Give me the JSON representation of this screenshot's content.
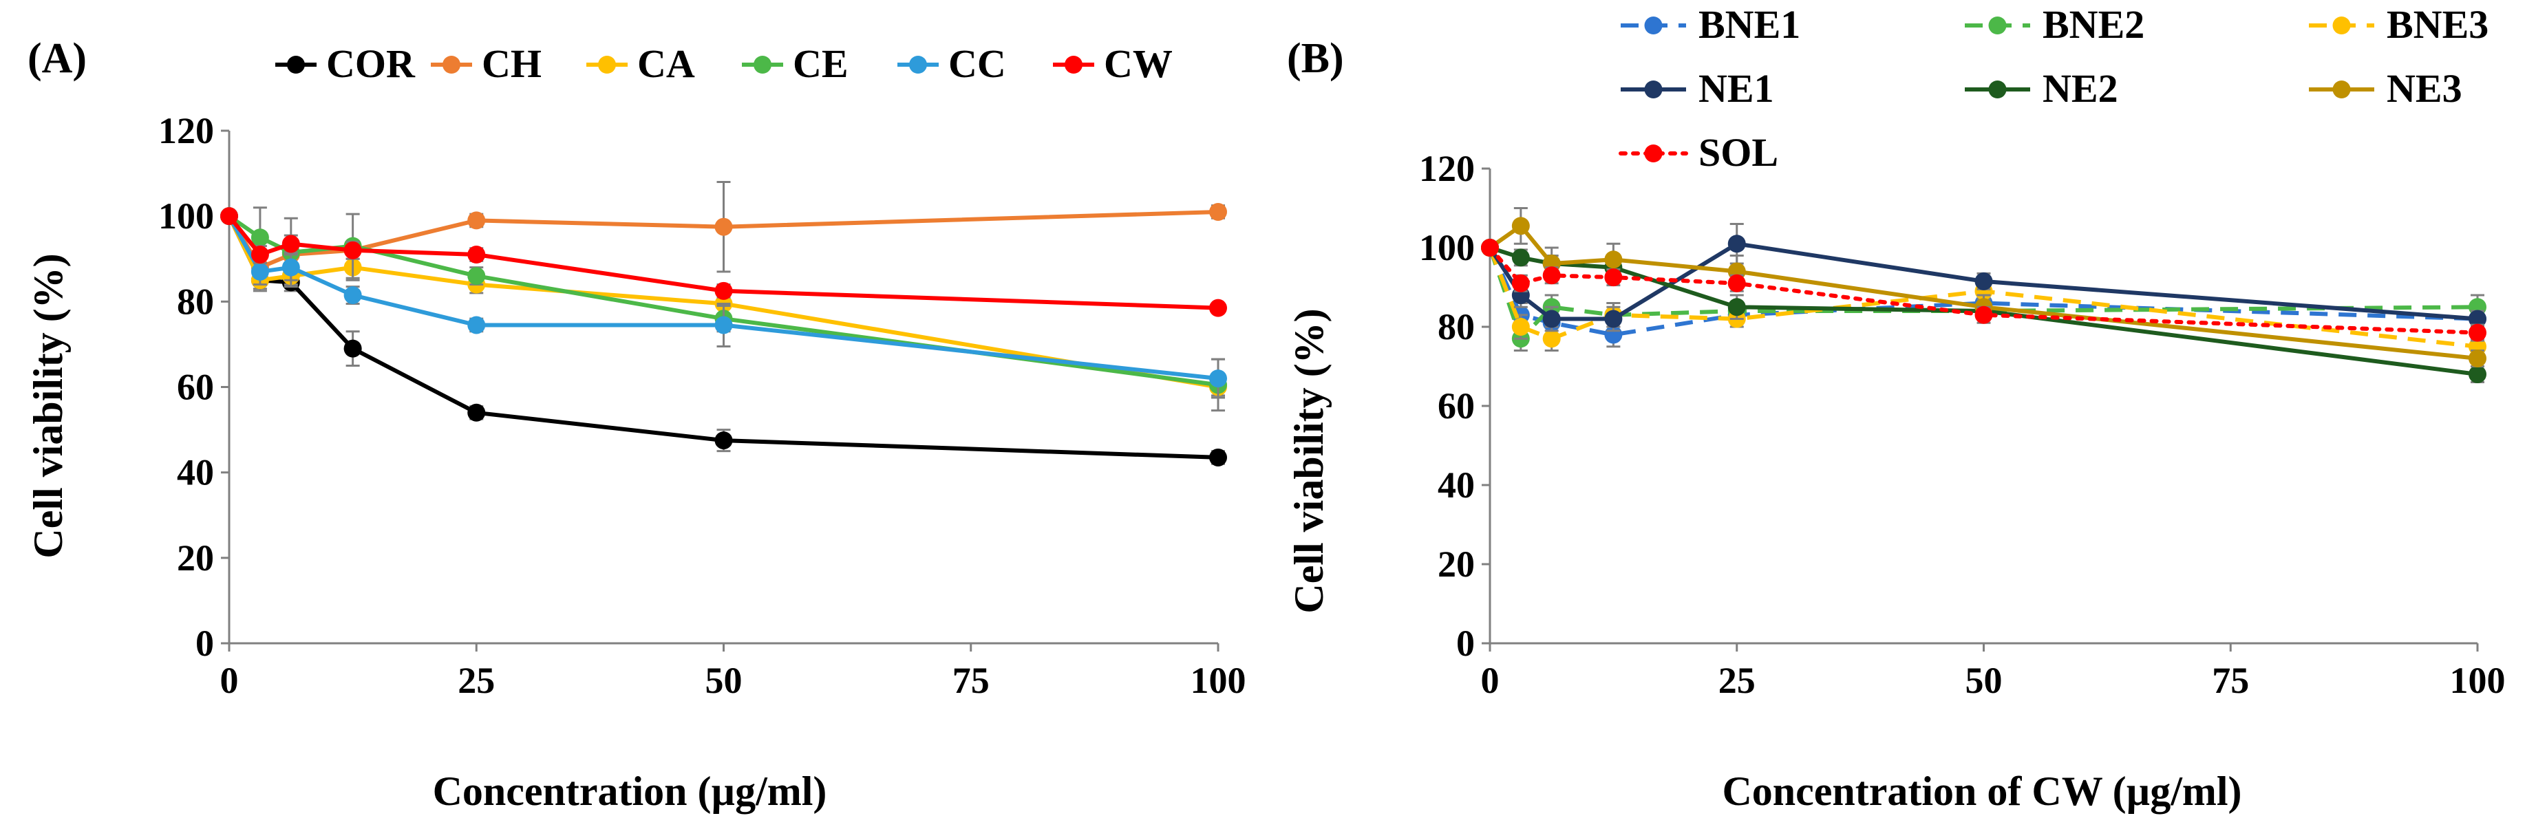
{
  "chart_data": [
    {
      "panel_label": "(A)",
      "type": "line",
      "xlabel": "Concentration (µg/ml)",
      "ylabel": "Cell viability (%)",
      "xlim": [
        0,
        100
      ],
      "ylim": [
        0,
        120
      ],
      "x_ticks": [
        0,
        25,
        50,
        75,
        100
      ],
      "y_ticks": [
        0,
        20,
        40,
        60,
        80,
        100,
        120
      ],
      "legend_position": "top",
      "series": [
        {
          "name": "COR",
          "color": "#000000",
          "dash": "solid",
          "x": [
            0,
            3.125,
            6.25,
            12.5,
            25,
            50,
            100
          ],
          "y": [
            100,
            85,
            84.5,
            69,
            54,
            47.5,
            43.5
          ],
          "err": [
            0,
            2.5,
            2,
            4,
            1.5,
            2.5,
            1.5
          ]
        },
        {
          "name": "CH",
          "color": "#ED7D31",
          "dash": "solid",
          "x": [
            0,
            3.125,
            6.25,
            12.5,
            25,
            50,
            100
          ],
          "y": [
            100,
            88,
            91,
            92,
            99,
            97.5,
            101
          ],
          "err": [
            0,
            2,
            3,
            2,
            1.5,
            10.5,
            1.5
          ]
        },
        {
          "name": "CA",
          "color": "#FFC000",
          "dash": "solid",
          "x": [
            0,
            3.125,
            6.25,
            12.5,
            25,
            50,
            100
          ],
          "y": [
            100,
            85,
            86,
            88,
            84,
            79.5,
            60
          ],
          "err": [
            0,
            2,
            2,
            3,
            2,
            2.5,
            2
          ]
        },
        {
          "name": "CE",
          "color": "#4CB848",
          "dash": "solid",
          "x": [
            0,
            3.125,
            6.25,
            12.5,
            25,
            50,
            100
          ],
          "y": [
            100,
            95,
            91.5,
            93,
            86,
            76,
            60.5
          ],
          "err": [
            0,
            7,
            8,
            7.5,
            2,
            3,
            6
          ]
        },
        {
          "name": "CC",
          "color": "#2E9BDA",
          "dash": "solid",
          "x": [
            0,
            3.125,
            6.25,
            12.5,
            25,
            50,
            100
          ],
          "y": [
            100,
            87,
            88,
            81.5,
            74.5,
            74.5,
            62
          ],
          "err": [
            0,
            3,
            3,
            2,
            1.5,
            5,
            4.5
          ]
        },
        {
          "name": "CW",
          "color": "#FF0000",
          "dash": "solid",
          "x": [
            0,
            3.125,
            6.25,
            12.5,
            25,
            50,
            100
          ],
          "y": [
            100,
            91,
            93.5,
            92,
            91,
            82.5,
            78.5
          ],
          "err": [
            0,
            2,
            2,
            2,
            1.5,
            1.5,
            1
          ]
        }
      ]
    },
    {
      "panel_label": "(B)",
      "type": "line",
      "xlabel": "Concentration of CW (µg/ml)",
      "ylabel": "Cell viability (%)",
      "xlim": [
        0,
        100
      ],
      "ylim": [
        0,
        120
      ],
      "x_ticks": [
        0,
        25,
        50,
        75,
        100
      ],
      "y_ticks": [
        0,
        20,
        40,
        60,
        80,
        100,
        120
      ],
      "legend_position": "top",
      "series": [
        {
          "name": "BNE1",
          "color": "#2E75D1",
          "dash": "dashed",
          "x": [
            0,
            3.125,
            6.25,
            12.5,
            25,
            50,
            100
          ],
          "y": [
            100,
            83,
            81,
            78,
            83,
            86,
            82
          ],
          "err": [
            0,
            3,
            3,
            3,
            2,
            2,
            2
          ]
        },
        {
          "name": "BNE2",
          "color": "#4CB848",
          "dash": "dashed",
          "x": [
            0,
            3.125,
            6.25,
            12.5,
            25,
            50,
            100
          ],
          "y": [
            100,
            77,
            85,
            83,
            84,
            84,
            85
          ],
          "err": [
            0,
            3,
            3,
            3,
            2,
            2,
            3
          ]
        },
        {
          "name": "BNE3",
          "color": "#FFC000",
          "dash": "dashed",
          "x": [
            0,
            3.125,
            6.25,
            12.5,
            25,
            50,
            100
          ],
          "y": [
            100,
            80,
            77,
            83,
            82,
            89,
            75
          ],
          "err": [
            0,
            3,
            3,
            3,
            2,
            2,
            2
          ]
        },
        {
          "name": "NE1",
          "color": "#1F3864",
          "dash": "solid",
          "x": [
            0,
            3.125,
            6.25,
            12.5,
            25,
            50,
            100
          ],
          "y": [
            100,
            88,
            82,
            82,
            101,
            91.5,
            82
          ],
          "err": [
            0,
            3,
            3,
            3,
            5,
            2,
            2
          ]
        },
        {
          "name": "NE2",
          "color": "#1E5B1E",
          "dash": "solid",
          "x": [
            0,
            3.125,
            6.25,
            12.5,
            25,
            50,
            100
          ],
          "y": [
            100,
            97.5,
            96,
            95,
            85,
            84,
            68
          ],
          "err": [
            0,
            2,
            2,
            2,
            3,
            2,
            2
          ]
        },
        {
          "name": "NE3",
          "color": "#BF9000",
          "dash": "solid",
          "x": [
            0,
            3.125,
            6.25,
            12.5,
            25,
            50,
            100
          ],
          "y": [
            100,
            105.5,
            96,
            97,
            94,
            85,
            72
          ],
          "err": [
            0,
            4.5,
            4,
            4,
            4,
            3,
            2
          ]
        },
        {
          "name": "SOL",
          "color": "#FF0000",
          "dash": "dotted",
          "x": [
            0,
            3.125,
            6.25,
            12.5,
            25,
            50,
            100
          ],
          "y": [
            100,
            91,
            93,
            92.5,
            91,
            83,
            78.5
          ],
          "err": [
            0,
            2,
            2,
            2,
            2,
            2,
            2
          ]
        }
      ]
    }
  ]
}
